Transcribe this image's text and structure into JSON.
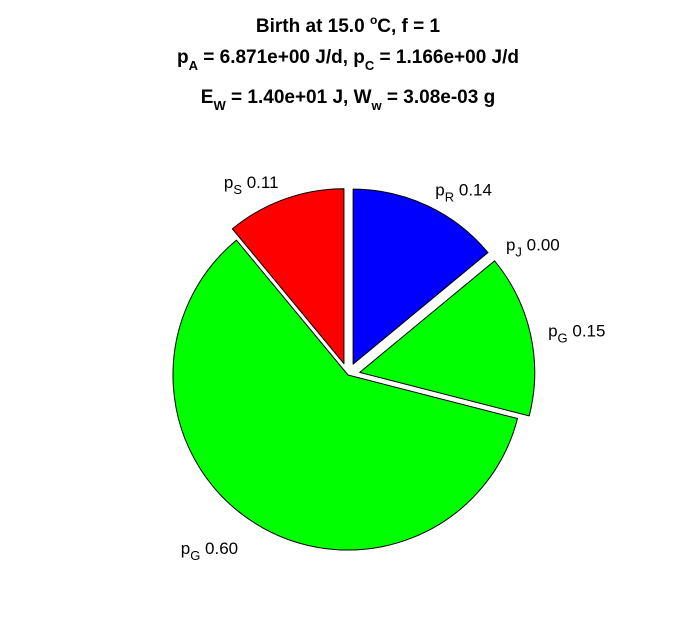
{
  "chart_data": {
    "type": "pie",
    "title": {
      "line1": {
        "pre": "Birth at 15.0 ",
        "sup": "o",
        "post": "C, f = 1"
      },
      "line2": {
        "a": "p",
        "a_sub": "A",
        "b": " = 6.871e+00 J/d, p",
        "b_sub": "C",
        "c": " = 1.166e+00 J/d"
      },
      "line3": {
        "a": "E",
        "a_sub": "W",
        "b": " = 1.40e+01 J, W",
        "b_sub": "w",
        "c": " = 3.08e-03 g"
      }
    },
    "slices": [
      {
        "symbol": "p",
        "sub": "R",
        "value": 0.14,
        "value_text": "0.14",
        "color": "#0000ff",
        "exploded": true
      },
      {
        "symbol": "p",
        "sub": "J",
        "value": 0.0,
        "value_text": "0.00",
        "color": "#00ff00",
        "exploded": true
      },
      {
        "symbol": "p",
        "sub": "G",
        "value": 0.15,
        "value_text": "0.15",
        "color": "#00ff00",
        "exploded": true
      },
      {
        "symbol": "p",
        "sub": "G",
        "value": 0.6,
        "value_text": "0.60",
        "color": "#00ff00",
        "exploded": false
      },
      {
        "symbol": "p",
        "sub": "S",
        "value": 0.11,
        "value_text": "0.11",
        "color": "#ff0000",
        "exploded": true
      }
    ]
  }
}
